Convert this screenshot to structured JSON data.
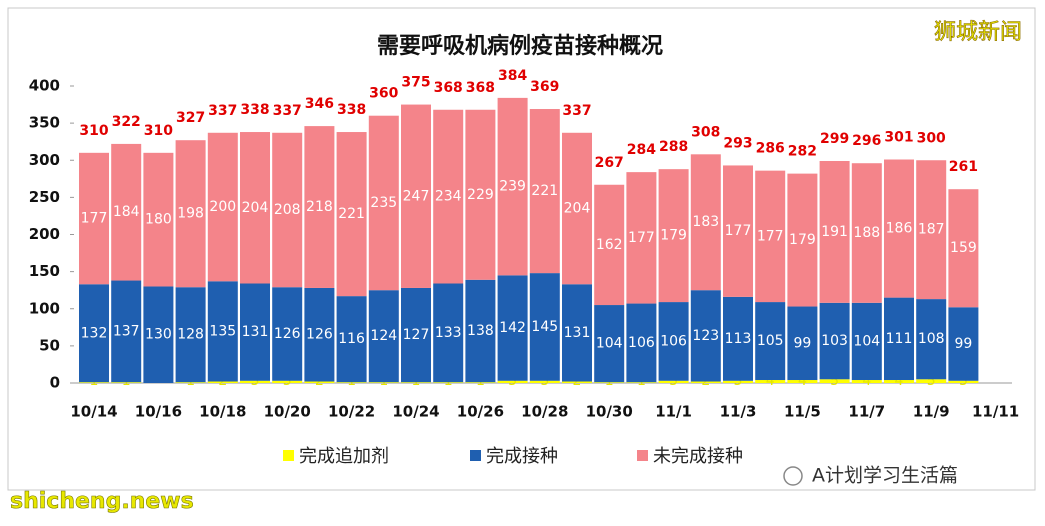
{
  "chart_data": {
    "type": "stacked-bar",
    "title": "需要呼吸机病例疫苗接种概况",
    "categories": [
      "10/14",
      null,
      "10/16",
      null,
      "10/18",
      null,
      "10/20",
      null,
      "10/22",
      null,
      "10/24",
      null,
      "10/26",
      null,
      "10/28",
      null,
      "10/30",
      null,
      "11/1",
      null,
      "11/3",
      null,
      "11/5",
      null,
      "11/7",
      null,
      "11/9",
      null,
      "11/11"
    ],
    "series": [
      {
        "name": "完成追加剂",
        "color": "#ffff00",
        "label_color": "#e6e600",
        "values": [
          1,
          1,
          null,
          1,
          2,
          3,
          3,
          2,
          1,
          1,
          1,
          1,
          1,
          3,
          3,
          2,
          1,
          1,
          3,
          2,
          3,
          4,
          4,
          5,
          4,
          4,
          5,
          3,
          null
        ]
      },
      {
        "name": "完成接种",
        "color": "#1f5fb0",
        "label_color": "#ffffff",
        "values": [
          132,
          137,
          130,
          128,
          135,
          131,
          126,
          126,
          116,
          124,
          127,
          133,
          138,
          142,
          145,
          131,
          104,
          106,
          106,
          123,
          113,
          105,
          99,
          103,
          104,
          111,
          108,
          99,
          null
        ]
      },
      {
        "name": "未完成接种",
        "color": "#f4848a",
        "label_color": "#ffffff",
        "values": [
          177,
          184,
          180,
          198,
          200,
          204,
          208,
          218,
          221,
          235,
          247,
          234,
          229,
          239,
          221,
          204,
          162,
          177,
          179,
          183,
          177,
          177,
          179,
          191,
          188,
          186,
          187,
          159,
          null
        ]
      }
    ],
    "totals": [
      310,
      322,
      310,
      327,
      337,
      338,
      337,
      346,
      338,
      360,
      375,
      368,
      368,
      384,
      369,
      337,
      267,
      284,
      288,
      308,
      293,
      286,
      282,
      299,
      296,
      301,
      300,
      261,
      null
    ],
    "total_color": "#e00000",
    "ylim": [
      0,
      400
    ],
    "yticks": [
      0,
      50,
      100,
      150,
      200,
      250,
      300,
      350,
      400
    ],
    "grid": false,
    "watermarks": [
      "狮城新闻",
      "A计划学习生活篇",
      "shicheng.news"
    ]
  }
}
